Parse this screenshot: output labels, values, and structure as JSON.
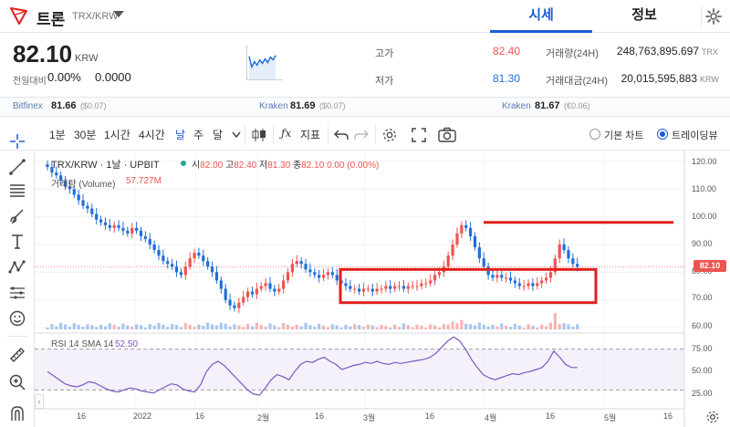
{
  "header": {
    "coin_name": "트론",
    "pair": "TRX/KRW",
    "tab_price": "시세",
    "tab_info": "정보"
  },
  "summary": {
    "price": "82.10",
    "unit": "KRW",
    "change_label": "전일대비",
    "change_pct": "0.00%",
    "change_abs": "0.0000",
    "high_label": "고가",
    "high_value": "82.40",
    "low_label": "저가",
    "low_value": "81.30",
    "volume_label": "거래량(24H)",
    "volume_value": "248,763,895.697",
    "volume_unit": "TRX",
    "amount_label": "거래대금(24H)",
    "amount_value": "20,015,595,883",
    "amount_unit": "KRW"
  },
  "exchanges": [
    {
      "name": "Bitfinex",
      "price": "81.66",
      "diff": "($0.07)"
    },
    {
      "name": "Kraken",
      "price": "81.69",
      "diff": "($0.07)"
    },
    {
      "name": "Kraken",
      "price": "81.67",
      "diff": "(€0.06)"
    }
  ],
  "toolbar": {
    "intervals": [
      "1분",
      "30분",
      "1시간",
      "4시간",
      "날",
      "주",
      "달"
    ],
    "active_interval": "날",
    "indicator_label": "지표",
    "basic_chart": "기본 차트",
    "trading_view": "트레이딩뷰"
  },
  "legend": {
    "title": "TRX/KRW · 1날 · UPBIT",
    "open_label": "시",
    "open": "82.00",
    "high_label": "고",
    "high": "82.40",
    "low_label": "저",
    "low": "81.30",
    "close_label": "종",
    "close": "82.10",
    "change": "0.00 (0.00%)",
    "volume_label": "거래량 (Volume)",
    "volume_value": "57.727M",
    "rsi_label": "RSI 14 SMA 14",
    "rsi_value": "52.50"
  },
  "axes": {
    "price_ticks": [
      "120.00",
      "110.00",
      "100.00",
      "90.00",
      "80.00",
      "70.00",
      "60.00"
    ],
    "rsi_ticks": [
      "75.00",
      "50.00",
      "25.00"
    ],
    "current_price_tag": "82.10",
    "x_ticks": [
      "16",
      "2022",
      "16",
      "2월",
      "16",
      "3월",
      "16",
      "4월",
      "16",
      "5월",
      "16"
    ]
  },
  "colors": {
    "up": "#ef5350",
    "down": "#1e6fd9",
    "accent": "#1a5bd6",
    "rsi": "#7e57c2",
    "annotation": "#e0201b"
  },
  "chart_data": {
    "type": "candlestick",
    "ylim": [
      60,
      120
    ],
    "close_series": [
      118,
      116,
      115,
      113,
      111,
      110,
      108,
      106,
      104,
      103,
      101,
      99,
      98,
      97,
      96,
      97,
      96,
      95,
      94,
      96,
      95,
      93,
      92,
      90,
      88,
      86,
      84,
      83,
      82,
      80,
      79,
      82,
      85,
      87,
      86,
      84,
      82,
      80,
      77,
      74,
      70,
      68,
      67,
      69,
      71,
      73,
      72,
      74,
      75,
      76,
      74,
      73,
      74,
      77,
      80,
      83,
      84,
      83,
      81,
      80,
      79,
      78,
      79,
      80,
      79,
      77,
      76,
      75,
      74,
      74,
      73,
      74,
      74,
      73,
      74,
      74,
      75,
      74,
      75,
      75,
      74,
      75,
      75,
      75,
      76,
      76,
      77,
      79,
      80,
      82,
      86,
      90,
      94,
      97,
      96,
      93,
      89,
      85,
      82,
      79,
      78,
      79,
      78,
      78,
      77,
      76,
      75,
      75,
      76,
      75,
      76,
      77,
      78,
      80,
      85,
      90,
      88,
      85,
      83,
      82
    ],
    "rsi_values": [
      48,
      44,
      40,
      36,
      34,
      33,
      35,
      38,
      37,
      34,
      31,
      29,
      28,
      30,
      32,
      31,
      29,
      28,
      27,
      30,
      33,
      36,
      35,
      31,
      29,
      28,
      35,
      48,
      55,
      58,
      54,
      48,
      42,
      36,
      30,
      26,
      25,
      32,
      40,
      45,
      43,
      40,
      48,
      55,
      58,
      57,
      60,
      62,
      58,
      55,
      50,
      52,
      54,
      55,
      57,
      56,
      58,
      56,
      55,
      57,
      56,
      57,
      58,
      59,
      60,
      62,
      66,
      72,
      78,
      82,
      78,
      70,
      60,
      52,
      45,
      42,
      40,
      42,
      44,
      46,
      45,
      47,
      48,
      50,
      52,
      58,
      68,
      62,
      55,
      52,
      52
    ]
  }
}
